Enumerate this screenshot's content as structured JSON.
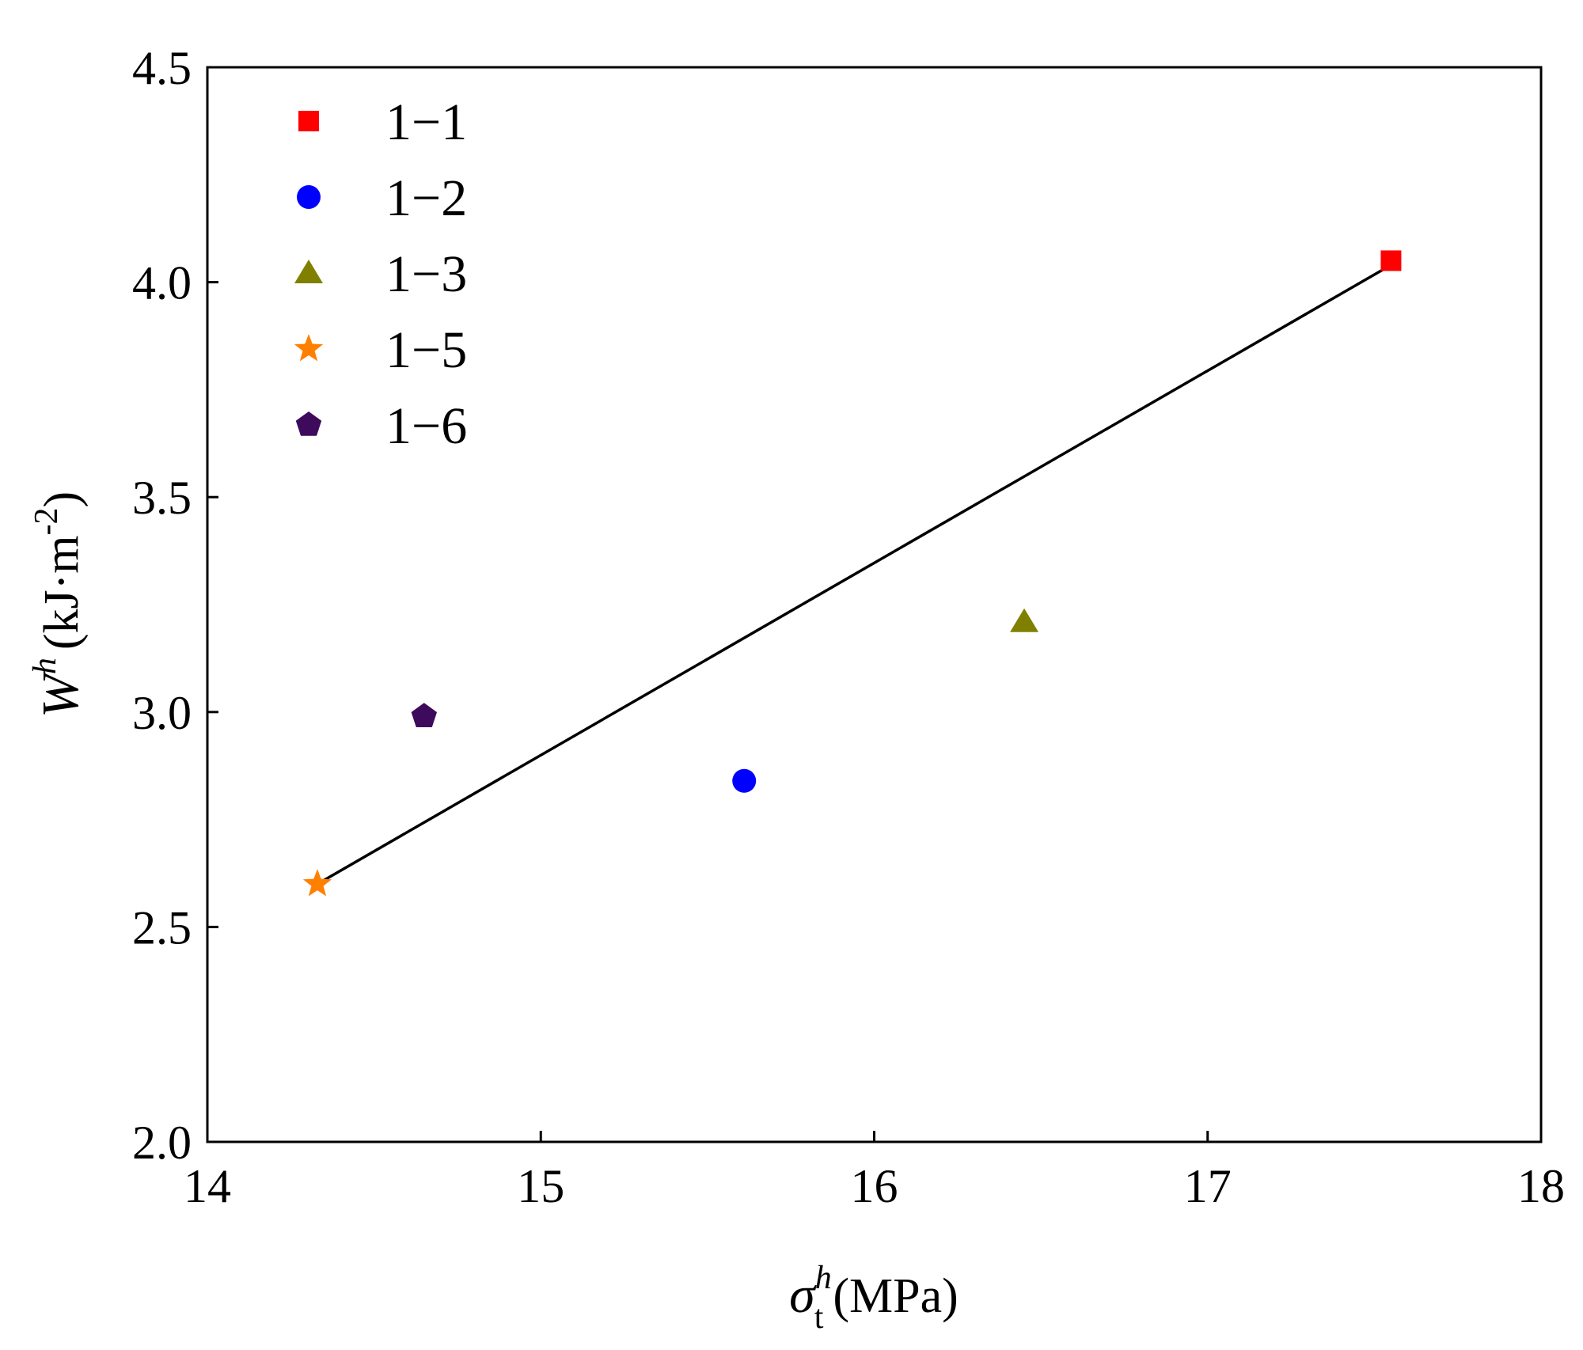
{
  "chart_data": {
    "type": "scatter",
    "xlim": [
      14,
      18
    ],
    "ylim": [
      2.0,
      4.5
    ],
    "x_ticks": [
      14,
      15,
      16,
      17,
      18
    ],
    "y_ticks": [
      2.0,
      2.5,
      3.0,
      3.5,
      4.0,
      4.5
    ],
    "x_tick_labels": [
      "14",
      "15",
      "16",
      "17",
      "18"
    ],
    "y_tick_labels": [
      "2.0",
      "2.5",
      "3.0",
      "3.5",
      "4.0",
      "4.5"
    ],
    "xlabel": {
      "symbol": "σ",
      "superscript": "h",
      "subscript": "t",
      "unit": "(MPa)"
    },
    "ylabel": {
      "symbol": "W",
      "superscript": "h",
      "unit_main": "(kJ·m",
      "unit_sup": "-2",
      "unit_end": ")"
    },
    "grid": false,
    "legend_position": "top-left",
    "series": [
      {
        "name": "1−1",
        "marker": "square",
        "color": "#ff0000",
        "x": 17.55,
        "y": 4.05
      },
      {
        "name": "1−2",
        "marker": "circle",
        "color": "#0000ff",
        "x": 15.61,
        "y": 2.84
      },
      {
        "name": "1−3",
        "marker": "triangle",
        "color": "#808000",
        "x": 16.45,
        "y": 3.21
      },
      {
        "name": "1−5",
        "marker": "star",
        "color": "#ff8000",
        "x": 14.33,
        "y": 2.6
      },
      {
        "name": "1−6",
        "marker": "pentagon",
        "color": "#3d0a5c",
        "x": 14.65,
        "y": 2.99
      }
    ],
    "fit_line": {
      "x": [
        14.33,
        17.55
      ],
      "y": [
        2.6,
        4.04
      ],
      "color": "#000000"
    }
  }
}
